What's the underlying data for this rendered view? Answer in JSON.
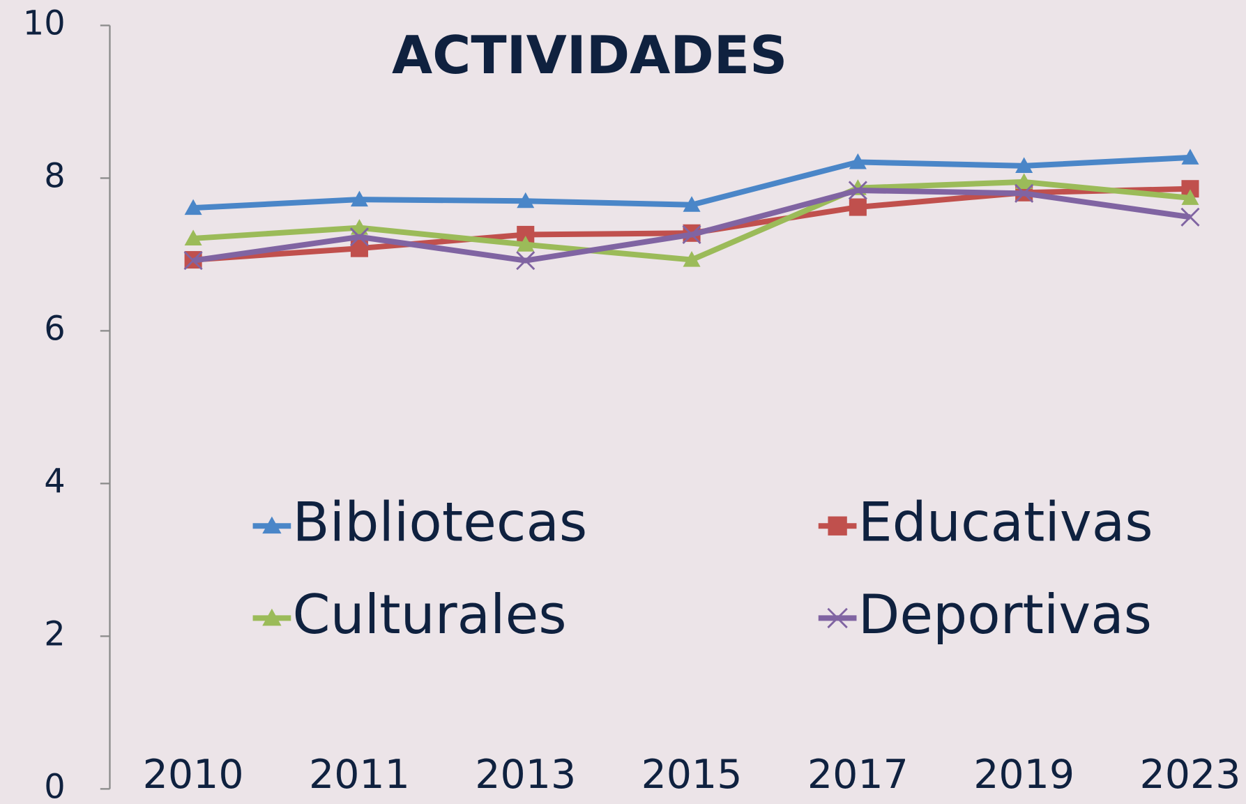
{
  "chart_data": {
    "type": "line",
    "title": "ACTIVIDADES",
    "categories": [
      "2010",
      "2011",
      "2013",
      "2015",
      "2017",
      "2019",
      "2023"
    ],
    "series": [
      {
        "name": "Bibliotecas",
        "color": "#4a86c8",
        "marker": "triangle",
        "values": [
          7.61,
          7.72,
          7.7,
          7.65,
          8.21,
          8.16,
          8.27
        ]
      },
      {
        "name": "Educativas",
        "color": "#c0504d",
        "marker": "square",
        "values": [
          6.93,
          7.08,
          7.26,
          7.28,
          7.62,
          7.81,
          7.86
        ]
      },
      {
        "name": "Culturales",
        "color": "#9bbb59",
        "marker": "triangle",
        "values": [
          7.21,
          7.35,
          7.13,
          6.93,
          7.87,
          7.95,
          7.74
        ]
      },
      {
        "name": "Deportivas",
        "color": "#8064a2",
        "marker": "x",
        "values": [
          6.92,
          7.23,
          6.92,
          7.26,
          7.84,
          7.8,
          7.49
        ]
      }
    ],
    "ylim": [
      0,
      10
    ],
    "yticks": [
      0,
      2,
      4,
      6,
      8,
      10
    ],
    "grid": false,
    "legend_position": "lower center"
  }
}
